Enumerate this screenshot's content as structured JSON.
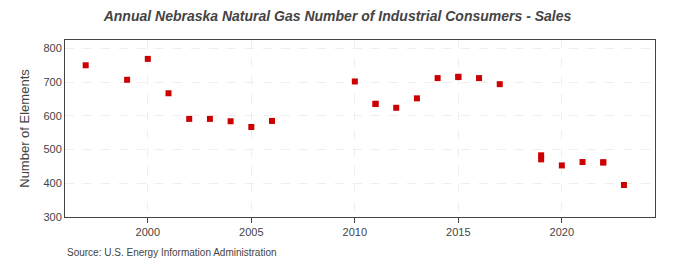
{
  "chart_data": {
    "type": "scatter",
    "title": "Annual Nebraska Natural Gas Number of Industrial Consumers - Sales",
    "y_label": "Number of Elements",
    "annotations": [
      "Source: U.S. Energy Information Administration"
    ],
    "x": [
      1997,
      1999,
      2000,
      2001,
      2002,
      2003,
      2004,
      2005,
      2006,
      2010,
      2011,
      2011,
      2012,
      2013,
      2014,
      2015,
      2015,
      2016,
      2017,
      2019,
      2019,
      2020,
      2021,
      2022,
      2022,
      2023
    ],
    "values": [
      750,
      707,
      769,
      667,
      591,
      591,
      584,
      567,
      585,
      702,
      635,
      636,
      624,
      652,
      712,
      716,
      715,
      712,
      694,
      471,
      483,
      453,
      463,
      462,
      462,
      395
    ],
    "color": "#cc0000",
    "marker": "square",
    "xlim": [
      1996,
      2024.5
    ],
    "xticks": [
      2000,
      2005,
      2010,
      2015,
      2020
    ],
    "ylim": [
      300,
      825
    ],
    "yticks": [
      300,
      400,
      500,
      600,
      700,
      800
    ],
    "grid": true
  }
}
